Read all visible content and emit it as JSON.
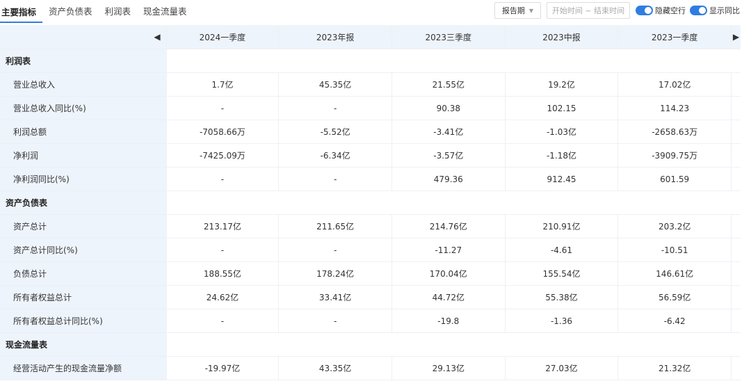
{
  "tabs": [
    "主要指标",
    "资产负债表",
    "利润表",
    "现金流量表"
  ],
  "controls": {
    "period_label": "报告期",
    "date_range_placeholder": "开始时间 ~ 结束时间",
    "hide_empty_label": "隐藏空行",
    "show_yoy_label": "显示同比"
  },
  "icons": {
    "prev": "caret-left-icon",
    "next": "caret-right-icon",
    "dropdown": "caret-down-icon"
  },
  "colors": {
    "accent": "#2f7de1",
    "label_bg": "#eef4fc"
  },
  "columns": [
    "2024一季度",
    "2023年报",
    "2023三季度",
    "2023中报",
    "2023一季度"
  ],
  "rows": [
    {
      "type": "section",
      "label": "利润表"
    },
    {
      "type": "data",
      "label": "营业总收入",
      "values": [
        "1.7亿",
        "45.35亿",
        "21.55亿",
        "19.2亿",
        "17.02亿"
      ]
    },
    {
      "type": "data",
      "label": "营业总收入同比(%)",
      "values": [
        "-",
        "-",
        "90.38",
        "102.15",
        "114.23"
      ]
    },
    {
      "type": "data",
      "label": "利润总额",
      "values": [
        "-7058.66万",
        "-5.52亿",
        "-3.41亿",
        "-1.03亿",
        "-2658.63万"
      ]
    },
    {
      "type": "data",
      "label": "净利润",
      "values": [
        "-7425.09万",
        "-6.34亿",
        "-3.57亿",
        "-1.18亿",
        "-3909.75万"
      ]
    },
    {
      "type": "data",
      "label": "净利润同比(%)",
      "values": [
        "-",
        "-",
        "479.36",
        "912.45",
        "601.59"
      ]
    },
    {
      "type": "section",
      "label": "资产负债表"
    },
    {
      "type": "data",
      "label": "资产总计",
      "values": [
        "213.17亿",
        "211.65亿",
        "214.76亿",
        "210.91亿",
        "203.2亿"
      ]
    },
    {
      "type": "data",
      "label": "资产总计同比(%)",
      "values": [
        "-",
        "-",
        "-11.27",
        "-4.61",
        "-10.51"
      ]
    },
    {
      "type": "data",
      "label": "负债总计",
      "values": [
        "188.55亿",
        "178.24亿",
        "170.04亿",
        "155.54亿",
        "146.61亿"
      ]
    },
    {
      "type": "data",
      "label": "所有者权益总计",
      "values": [
        "24.62亿",
        "33.41亿",
        "44.72亿",
        "55.38亿",
        "56.59亿"
      ]
    },
    {
      "type": "data",
      "label": "所有者权益总计同比(%)",
      "values": [
        "-",
        "-",
        "-19.8",
        "-1.36",
        "-6.42"
      ]
    },
    {
      "type": "section",
      "label": "现金流量表"
    },
    {
      "type": "data",
      "label": "经营活动产生的现金流量净额",
      "values": [
        "-19.97亿",
        "43.35亿",
        "29.13亿",
        "27.03亿",
        "21.32亿"
      ]
    }
  ]
}
